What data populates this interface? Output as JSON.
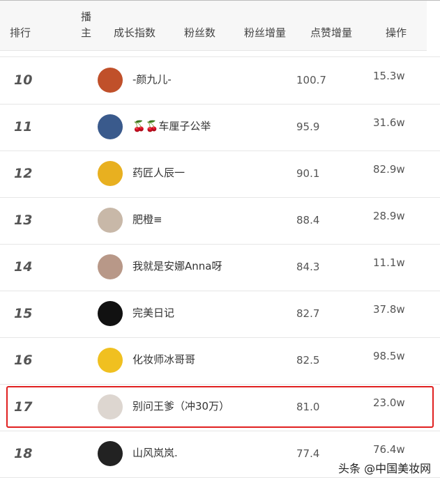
{
  "header": {
    "rank": "排行",
    "host_1": "播",
    "host_2": "主",
    "growth": "成长指数",
    "fans": "粉丝数",
    "fans_inc": "粉丝增量",
    "likes_inc": "点赞增量",
    "action": "操作"
  },
  "rows": [
    {
      "rank": "10",
      "name": "-颜九儿-",
      "v1": "100.7",
      "v2": "15.3w",
      "color": "#c0502a"
    },
    {
      "rank": "11",
      "name": "🍒🍒车厘子公举",
      "v1": "95.9",
      "v2": "31.6w",
      "color": "#3a5a8c"
    },
    {
      "rank": "12",
      "name": "药匠人辰一",
      "v1": "90.1",
      "v2": "82.9w",
      "color": "#e8b020"
    },
    {
      "rank": "13",
      "name": "肥橙≡",
      "v1": "88.4",
      "v2": "28.9w",
      "color": "#c8b8a8"
    },
    {
      "rank": "14",
      "name": "我就是安娜Anna呀",
      "v1": "84.3",
      "v2": "11.1w",
      "color": "#b89888"
    },
    {
      "rank": "15",
      "name": "完美日记",
      "v1": "82.7",
      "v2": "37.8w",
      "color": "#111111"
    },
    {
      "rank": "16",
      "name": "化妆师冰哥哥",
      "v1": "82.5",
      "v2": "98.5w",
      "color": "#f0c020"
    },
    {
      "rank": "17",
      "name": "别问王爹（冲30万）",
      "v1": "81.0",
      "v2": "23.0w",
      "color": "#ddd6d0",
      "highlight": true
    },
    {
      "rank": "18",
      "name": "山风岚岚.",
      "v1": "77.4",
      "v2": "76.4w",
      "color": "#222222"
    }
  ],
  "watermark": "头条 @中国美妆网",
  "highlight_color": "#e02020"
}
